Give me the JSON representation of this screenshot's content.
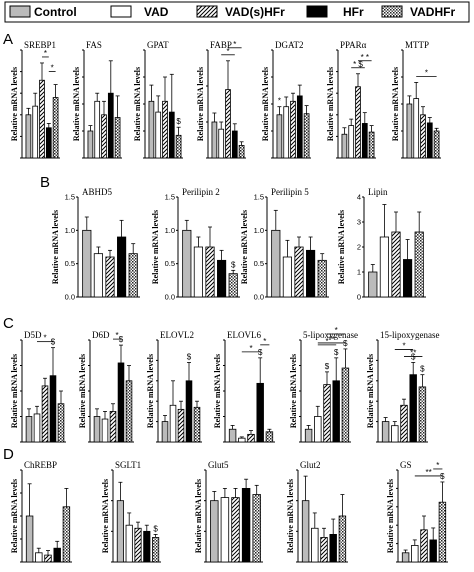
{
  "legend": [
    {
      "label": "Control",
      "pattern": "gray"
    },
    {
      "label": "VAD",
      "pattern": "white"
    },
    {
      "label": "VAD(s)HFr",
      "pattern": "hatch"
    },
    {
      "label": "HFr",
      "pattern": "black"
    },
    {
      "label": "VADHFr",
      "pattern": "dots"
    }
  ],
  "panels": [
    "A",
    "B",
    "C",
    "D"
  ],
  "colors": {
    "control": "#bbbbbb",
    "vad": "#ffffff",
    "hfr": "#000000",
    "stroke": "#000000"
  },
  "chart_data": [
    {
      "type": "bar",
      "panel": "A",
      "title": "SREBP1",
      "ylabel": "Relative mRNA levels",
      "ylim": [
        0,
        2.5
      ],
      "yticks": [
        0,
        0.5,
        1.0,
        1.5,
        2.0,
        2.5
      ],
      "values": [
        1.0,
        1.2,
        1.8,
        0.7,
        1.4
      ],
      "errors": [
        0.15,
        0.3,
        0.4,
        0.1,
        0.3
      ],
      "annotations": [
        {
          "text": "*",
          "pair": [
            2,
            3
          ]
        },
        {
          "text": "*",
          "pair": [
            3,
            4
          ]
        }
      ]
    },
    {
      "type": "bar",
      "panel": "A",
      "title": "FAS",
      "ylabel": "Relative mRNA levels",
      "ylim": [
        0,
        4
      ],
      "yticks": [
        0,
        1,
        2,
        3,
        4
      ],
      "values": [
        1.0,
        2.1,
        1.6,
        2.4,
        1.5
      ],
      "errors": [
        0.2,
        0.3,
        0.5,
        1.2,
        0.8
      ],
      "annotations": []
    },
    {
      "type": "bar",
      "panel": "A",
      "title": "GPAT",
      "ylabel": "Relative mRNA levels",
      "ylim": [
        0,
        2.0
      ],
      "yticks": [
        0,
        0.5,
        1.0,
        1.5,
        2.0
      ],
      "values": [
        1.05,
        0.85,
        1.05,
        0.85,
        0.42
      ],
      "errors": [
        0.3,
        0.3,
        0.45,
        0.7,
        0.15
      ],
      "annotations": [
        {
          "text": "$",
          "pair": [
            4,
            4
          ]
        }
      ]
    },
    {
      "type": "bar",
      "panel": "A",
      "title": "FABP",
      "ylabel": "Relative mRNA levels",
      "ylim": [
        0,
        3
      ],
      "yticks": [
        0,
        1,
        2,
        3
      ],
      "values": [
        1.0,
        0.8,
        1.9,
        0.75,
        0.35
      ],
      "errors": [
        0.25,
        0.2,
        0.8,
        0.2,
        0.1
      ],
      "annotations": [
        {
          "text": "*",
          "pair": [
            1,
            3
          ]
        },
        {
          "text": "*",
          "pair": [
            2,
            4
          ]
        }
      ]
    },
    {
      "type": "bar",
      "panel": "A",
      "title": "DGAT2",
      "ylabel": "Relative mRNA levels",
      "ylim": [
        0,
        20
      ],
      "yticks": [
        0,
        5,
        10,
        15,
        20
      ],
      "values": [
        8.0,
        9.5,
        10.5,
        11.5,
        8.2
      ],
      "errors": [
        1.5,
        1.8,
        1.5,
        2.0,
        1.5
      ],
      "annotations": [
        {
          "text": "*",
          "pair": [
            0,
            0
          ]
        }
      ]
    },
    {
      "type": "bar",
      "panel": "A",
      "title": "PPARα",
      "ylabel": "Relative mRNA levels",
      "ylim": [
        0,
        5
      ],
      "yticks": [
        0,
        1,
        2,
        3,
        4,
        5
      ],
      "values": [
        1.1,
        1.5,
        3.3,
        1.6,
        1.2
      ],
      "errors": [
        0.3,
        0.3,
        0.6,
        0.5,
        0.3
      ],
      "annotations": [
        {
          "text": "* $",
          "pair": [
            1,
            3
          ]
        },
        {
          "text": "* *",
          "pair": [
            2,
            4
          ]
        }
      ]
    },
    {
      "type": "bar",
      "panel": "A",
      "title": "MTTP",
      "ylabel": "Relative mRNA levels",
      "ylim": [
        0,
        2.0
      ],
      "yticks": [
        0,
        0.5,
        1.0,
        1.5,
        2.0
      ],
      "values": [
        1.0,
        1.1,
        0.8,
        0.65,
        0.5
      ],
      "errors": [
        0.15,
        0.3,
        0.15,
        0.1,
        0.05
      ],
      "annotations": [
        {
          "text": "*",
          "pair": [
            1,
            4
          ]
        }
      ]
    },
    {
      "type": "bar",
      "panel": "B",
      "title": "ABHD5",
      "ylabel": "Relative mRNA levels",
      "ylim": [
        0,
        1.5
      ],
      "yticks": [
        0.0,
        0.5,
        1.0,
        1.5
      ],
      "values": [
        1.0,
        0.65,
        0.6,
        0.9,
        0.65
      ],
      "errors": [
        0.2,
        0.1,
        0.1,
        0.25,
        0.15
      ],
      "annotations": []
    },
    {
      "type": "bar",
      "panel": "B",
      "title": "Perilipin 2",
      "ylabel": "Relative mRNA levels",
      "ylim": [
        0,
        1.5
      ],
      "yticks": [
        0.0,
        0.5,
        1.0,
        1.5
      ],
      "values": [
        1.0,
        0.75,
        0.75,
        0.55,
        0.35
      ],
      "errors": [
        0.15,
        0.15,
        0.3,
        0.15,
        0.05
      ],
      "annotations": [
        {
          "text": "$",
          "pair": [
            4,
            4
          ]
        }
      ]
    },
    {
      "type": "bar",
      "panel": "B",
      "title": "Perilipin 5",
      "ylabel": "Relative mRNA levels",
      "ylim": [
        0,
        1.5
      ],
      "yticks": [
        0.0,
        0.5,
        1.0,
        1.5
      ],
      "values": [
        1.0,
        0.6,
        0.75,
        0.7,
        0.55
      ],
      "errors": [
        0.3,
        0.25,
        0.15,
        0.2,
        0.1
      ],
      "annotations": []
    },
    {
      "type": "bar",
      "panel": "B",
      "title": "Lipin",
      "ylabel": "Relative mRNA levels",
      "ylim": [
        0,
        4
      ],
      "yticks": [
        0,
        1,
        2,
        3,
        4
      ],
      "values": [
        1.0,
        2.4,
        2.6,
        1.5,
        2.6
      ],
      "errors": [
        0.3,
        1.3,
        0.8,
        0.8,
        0.8
      ],
      "annotations": []
    },
    {
      "type": "bar",
      "panel": "C",
      "title": "D5D",
      "ylabel": "Relative mRNA levels",
      "ylim": [
        0,
        4
      ],
      "yticks": [
        0,
        1,
        2,
        3,
        4
      ],
      "values": [
        1.0,
        1.1,
        2.2,
        2.6,
        1.5
      ],
      "errors": [
        0.3,
        0.3,
        0.3,
        1.1,
        0.5
      ],
      "annotations": [
        {
          "text": "*",
          "pair": [
            1,
            3
          ]
        },
        {
          "text": "$",
          "pair": [
            3,
            3
          ]
        }
      ]
    },
    {
      "type": "bar",
      "panel": "C",
      "title": "D6D",
      "ylabel": "Relative mRNA levels",
      "ylim": [
        0,
        4
      ],
      "yticks": [
        0,
        1,
        2,
        3,
        4
      ],
      "values": [
        1.0,
        0.9,
        1.2,
        3.1,
        2.4
      ],
      "errors": [
        0.3,
        0.3,
        0.3,
        0.7,
        0.6
      ],
      "annotations": [
        {
          "text": "*",
          "pair": [
            2,
            3
          ]
        },
        {
          "text": "$",
          "pair": [
            3,
            3
          ]
        }
      ]
    },
    {
      "type": "bar",
      "panel": "C",
      "title": "ELOVL2",
      "ylabel": "Relative mRNA levels",
      "ylim": [
        0,
        5
      ],
      "yticks": [
        0,
        1,
        2,
        3,
        4,
        5
      ],
      "values": [
        1.0,
        1.8,
        1.6,
        3.0,
        1.7
      ],
      "errors": [
        0.3,
        1.2,
        0.4,
        0.9,
        0.3
      ],
      "annotations": [
        {
          "text": "$",
          "pair": [
            3,
            3
          ]
        }
      ]
    },
    {
      "type": "bar",
      "panel": "C",
      "title": "ELOVL6",
      "ylabel": "Relative mRNA levels",
      "ylim": [
        0,
        8
      ],
      "yticks": [
        0,
        2,
        4,
        6,
        8
      ],
      "values": [
        1.0,
        0.3,
        0.6,
        4.6,
        0.8
      ],
      "errors": [
        0.3,
        0.1,
        0.3,
        2.0,
        0.2
      ],
      "annotations": [
        {
          "text": "*",
          "pair": [
            1,
            3
          ]
        },
        {
          "text": "*",
          "pair": [
            3,
            4
          ]
        },
        {
          "text": "$",
          "pair": [
            3,
            3
          ]
        }
      ]
    },
    {
      "type": "bar",
      "panel": "C",
      "title": "5-lipoxygenase",
      "ylabel": "Relative mRNA levels",
      "ylim": [
        0,
        8
      ],
      "yticks": [
        0,
        2,
        4,
        6,
        8
      ],
      "values": [
        1.0,
        2.0,
        4.5,
        4.8,
        5.8
      ],
      "errors": [
        0.3,
        0.8,
        1.0,
        1.8,
        1.5
      ],
      "annotations": [
        {
          "text": "**",
          "pair": [
            1,
            4
          ]
        },
        {
          "text": "*",
          "pair": [
            1,
            3
          ]
        },
        {
          "text": "*",
          "pair": [
            2,
            4
          ]
        },
        {
          "text": "$",
          "pair": [
            2,
            2
          ]
        },
        {
          "text": "$",
          "pair": [
            3,
            3
          ]
        },
        {
          "text": "$",
          "pair": [
            4,
            4
          ]
        }
      ]
    },
    {
      "type": "bar",
      "panel": "C",
      "title": "15-lipoxygenase",
      "ylabel": "Relative mRNA levels",
      "ylim": [
        0,
        5
      ],
      "yticks": [
        0,
        1,
        2,
        3,
        4,
        5
      ],
      "values": [
        1.0,
        0.8,
        1.8,
        3.3,
        2.7
      ],
      "errors": [
        0.2,
        0.2,
        0.3,
        0.6,
        0.6
      ],
      "annotations": [
        {
          "text": "**",
          "pair": [
            2,
            4
          ]
        },
        {
          "text": "*",
          "pair": [
            1,
            3
          ]
        },
        {
          "text": "$",
          "pair": [
            3,
            3
          ]
        },
        {
          "text": "$",
          "pair": [
            4,
            4
          ]
        }
      ]
    },
    {
      "type": "bar",
      "panel": "D",
      "title": "ChREBP",
      "ylabel": "Relative mRNA levels",
      "ylim": [
        0,
        2.0
      ],
      "yticks": [
        0,
        0.5,
        1.0,
        1.5,
        2.0
      ],
      "values": [
        1.0,
        0.2,
        0.15,
        0.3,
        1.2
      ],
      "errors": [
        0.7,
        0.1,
        0.1,
        0.15,
        0.4
      ],
      "annotations": []
    },
    {
      "type": "bar",
      "panel": "D",
      "title": "SGLT1",
      "ylabel": "Relative mRNA levels",
      "ylim": [
        0,
        1.5
      ],
      "yticks": [
        0.0,
        0.5,
        1.0,
        1.5
      ],
      "values": [
        1.0,
        0.6,
        0.55,
        0.5,
        0.4
      ],
      "errors": [
        0.3,
        0.2,
        0.1,
        0.1,
        0.05
      ],
      "annotations": [
        {
          "text": "$",
          "pair": [
            4,
            4
          ]
        }
      ]
    },
    {
      "type": "bar",
      "panel": "D",
      "title": "Glut5",
      "ylabel": "Relative mRNA levels",
      "ylim": [
        0,
        1.5
      ],
      "yticks": [
        0.0,
        0.5,
        1.0,
        1.5
      ],
      "values": [
        1.0,
        1.05,
        1.05,
        1.2,
        1.1
      ],
      "errors": [
        0.15,
        0.15,
        0.15,
        0.15,
        0.15
      ],
      "annotations": []
    },
    {
      "type": "bar",
      "panel": "D",
      "title": "Glut2",
      "ylabel": "Relative mRNA levels",
      "ylim": [
        0,
        1.5
      ],
      "yticks": [
        0.0,
        0.5,
        1.0,
        1.5
      ],
      "values": [
        1.0,
        0.55,
        0.4,
        0.45,
        0.75
      ],
      "errors": [
        0.4,
        0.25,
        0.15,
        0.25,
        0.35
      ],
      "annotations": []
    },
    {
      "type": "bar",
      "panel": "D",
      "title": "GS",
      "ylabel": "Relative mRNA levels",
      "ylim": [
        0,
        10
      ],
      "yticks": [
        0,
        2,
        4,
        6,
        8,
        10
      ],
      "values": [
        1.0,
        1.8,
        3.5,
        2.4,
        6.5
      ],
      "errors": [
        0.3,
        0.6,
        1.5,
        1.3,
        2.2
      ],
      "annotations": [
        {
          "text": "**",
          "pair": [
            1,
            4
          ]
        },
        {
          "text": "*",
          "pair": [
            3,
            4
          ]
        },
        {
          "text": "$",
          "pair": [
            4,
            4
          ]
        }
      ]
    }
  ]
}
